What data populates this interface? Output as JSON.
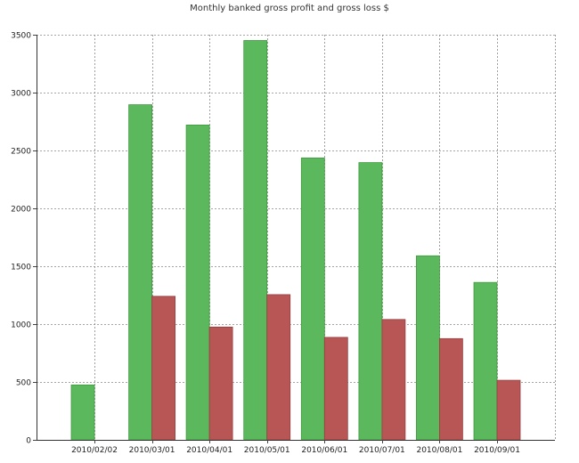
{
  "chart_data": {
    "type": "bar",
    "title": "Monthly banked gross profit and gross loss $",
    "xlabel": "",
    "ylabel": "",
    "categories": [
      "2010/02/02",
      "2010/03/01",
      "2010/04/01",
      "2010/05/01",
      "2010/06/01",
      "2010/07/01",
      "2010/08/01",
      "2010/09/01"
    ],
    "series": [
      {
        "values": [
          475,
          2895,
          2720,
          3450,
          2435,
          2395,
          1590,
          1360
        ],
        "color": "#5cb85c"
      },
      {
        "values": [
          0,
          1240,
          975,
          1255,
          885,
          1040,
          875,
          515
        ],
        "color": "#b85555"
      }
    ],
    "ylim": [
      0,
      3500
    ],
    "yticks": [
      0,
      500,
      1000,
      1500,
      2000,
      2500,
      3000,
      3500
    ],
    "grid": true,
    "legend": "none"
  }
}
